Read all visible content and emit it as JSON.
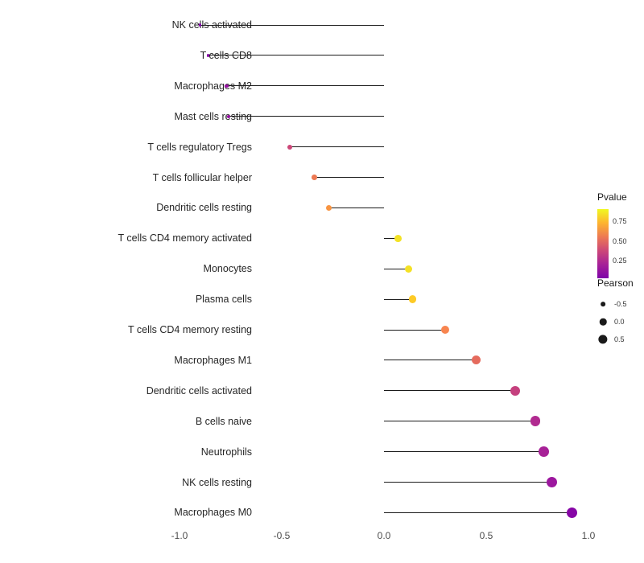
{
  "chart_data": {
    "type": "lollipop",
    "orientation": "horizontal",
    "title": "",
    "xlabel": "",
    "ylabel": "",
    "xlim": [
      -1.05,
      1.05
    ],
    "grid": false,
    "x_tick_labels": [
      "-1.0",
      "-0.5",
      "0.0",
      "0.5",
      "1.0"
    ],
    "x_tick_values": [
      -1.0,
      -0.5,
      0.0,
      0.5,
      1.0
    ],
    "categories": [
      "NK cells activated",
      "T cells CD8",
      "Macrophages M2",
      "Mast cells resting",
      "T cells regulatory Tregs",
      "T cells follicular helper",
      "Dendritic cells resting",
      "T cells CD4 memory activated",
      "Monocytes",
      "Plasma cells",
      "T cells CD4 memory resting",
      "Macrophages M1",
      "Dendritic cells activated",
      "B cells naive",
      "Neutrophils",
      "NK cells resting",
      "Macrophages M0"
    ],
    "series": [
      {
        "name": "Pearson correlation",
        "values": [
          -0.9,
          -0.86,
          -0.77,
          -0.76,
          -0.46,
          -0.34,
          -0.27,
          0.07,
          0.12,
          0.14,
          0.3,
          0.45,
          0.64,
          0.74,
          0.78,
          0.82,
          0.92
        ]
      },
      {
        "name": "Pvalue",
        "values": [
          0.01,
          0.02,
          0.05,
          0.05,
          0.35,
          0.5,
          0.6,
          0.85,
          0.82,
          0.78,
          0.55,
          0.45,
          0.3,
          0.2,
          0.15,
          0.1,
          0.02
        ]
      }
    ],
    "dot_colors": [
      "#7e03a8",
      "#8606a6",
      "#9511a1",
      "#9511a1",
      "#cc4778",
      "#ed7953",
      "#f89441",
      "#f3e225",
      "#f4e125",
      "#fdca26",
      "#f8854f",
      "#e56b5d",
      "#c5407e",
      "#b12a90",
      "#a72197",
      "#9c179e",
      "#8606a6"
    ],
    "stem_color": "#1a1a1a",
    "legend": {
      "position": "right",
      "pvalue_title": "Pvalue",
      "pvalue_tick_labels": [
        "0.75",
        "0.50",
        "0.25"
      ],
      "pvalue_gradient_top_to_bottom": [
        "#f0f921",
        "#fdb42f",
        "#ed7953",
        "#cc4778",
        "#a62098",
        "#7e03a8"
      ],
      "pearson_title": "Pearson",
      "pearson_size_items": [
        {
          "label": "-0.5",
          "value": -0.5
        },
        {
          "label": "0.0",
          "value": 0.0
        },
        {
          "label": "0.5",
          "value": 0.5
        }
      ]
    }
  }
}
